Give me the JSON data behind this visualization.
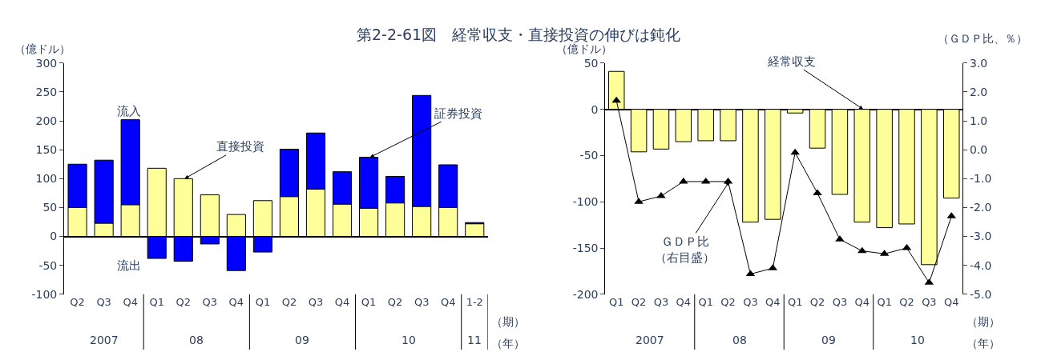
{
  "chart_data": [
    {
      "type": "bar",
      "title": "第2-2-61図　経常収支・直接投資の伸びは鈍化",
      "ylabel": "（億ドル）",
      "xlabel": "（期）",
      "stacked": true,
      "categories": [
        "Q2",
        "Q3",
        "Q4",
        "Q1",
        "Q2",
        "Q3",
        "Q4",
        "Q1",
        "Q2",
        "Q3",
        "Q4",
        "Q1",
        "Q2",
        "Q3",
        "Q4",
        "1-2"
      ],
      "series": [
        {
          "name": "直接投資",
          "color": "#ffff99",
          "values": [
            50,
            23,
            55,
            118,
            100,
            72,
            38,
            62,
            69,
            82,
            56,
            49,
            58,
            52,
            50,
            22
          ]
        },
        {
          "name": "証券投資",
          "color": "#0000ff",
          "values": [
            75,
            109,
            147,
            -38,
            -43,
            -13,
            -59,
            -27,
            82,
            97,
            56,
            88,
            46,
            192,
            74,
            2
          ]
        }
      ],
      "ylim": [
        -100,
        300
      ],
      "yticks": [
        -100,
        -50,
        0,
        50,
        100,
        150,
        200,
        250,
        300
      ],
      "annotations": [
        "2007",
        "08",
        "09",
        "10",
        "11",
        "（年）",
        "流入",
        "流出"
      ]
    },
    {
      "type": "bar",
      "ylabel": "（億ドル）",
      "y2label": "（ＧＤＰ比、％）",
      "xlabel": "（期）",
      "categories": [
        "Q1",
        "Q2",
        "Q3",
        "Q4",
        "Q1",
        "Q2",
        "Q3",
        "Q4",
        "Q1",
        "Q2",
        "Q3",
        "Q4",
        "Q1",
        "Q2",
        "Q3",
        "Q4"
      ],
      "series": [
        {
          "name": "経常収支",
          "color": "#ffff99",
          "values": [
            41,
            -46,
            -43,
            -35,
            -34,
            -34,
            -122,
            -119,
            -4,
            -42,
            -92,
            -122,
            -128,
            -124,
            -168,
            -96
          ]
        },
        {
          "name": "ＧＤＰ比（右目盛）",
          "type": "line",
          "axis": "y2",
          "color": "#000000",
          "marker": "triangle",
          "values": [
            1.7,
            -1.8,
            -1.6,
            -1.1,
            -1.1,
            -1.1,
            -4.3,
            -4.1,
            -0.1,
            -1.5,
            -3.1,
            -3.5,
            -3.6,
            -3.4,
            -4.6,
            -2.3
          ]
        }
      ],
      "ylim": [
        -200,
        50
      ],
      "yticks": [
        -200,
        -150,
        -100,
        -50,
        0,
        50
      ],
      "y2lim": [
        -5,
        3
      ],
      "y2ticks": [
        {
          "value": -5,
          "label": "-5.0"
        },
        {
          "value": -4,
          "label": "-4.0"
        },
        {
          "value": -3,
          "label": "-3.0"
        },
        {
          "value": -2,
          "label": "-2.0"
        },
        {
          "value": -1,
          "label": "-1.0"
        },
        {
          "value": 0,
          "label": "0.0"
        },
        {
          "value": 1,
          "label": "1.0"
        },
        {
          "value": 2,
          "label": "2.0"
        },
        {
          "value": 3,
          "label": "3.0"
        }
      ],
      "annotations": [
        "2007",
        "08",
        "09",
        "10",
        "（年）"
      ]
    }
  ]
}
